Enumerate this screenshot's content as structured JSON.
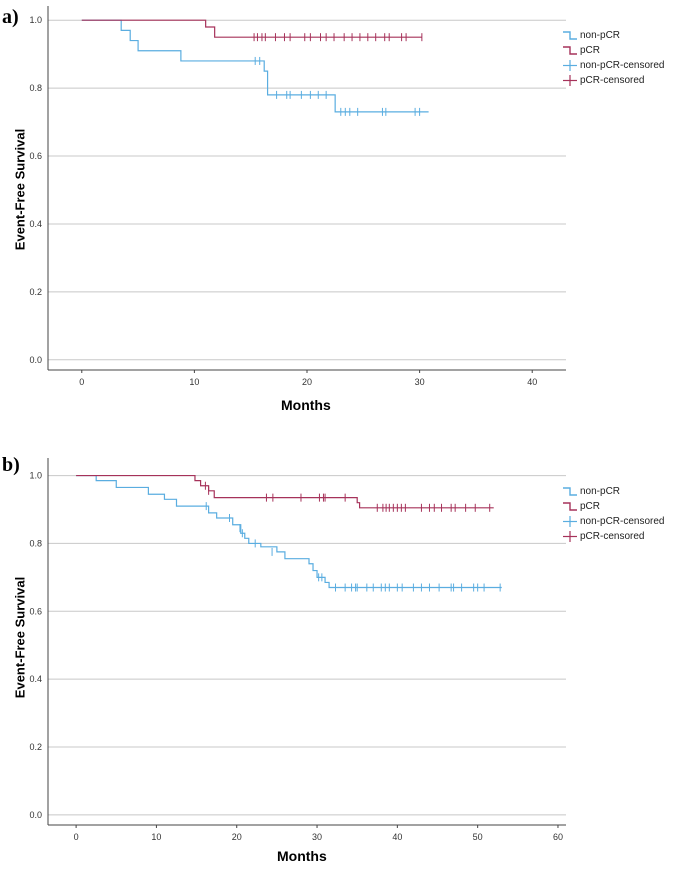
{
  "panels": [
    {
      "label": "a)"
    },
    {
      "label": "b)"
    }
  ],
  "chart_data": [
    {
      "type": "line",
      "ylabel": "Event-Free Survival",
      "xlabel": "Months",
      "xlim": [
        -3,
        43
      ],
      "ylim": [
        -0.03,
        1.03
      ],
      "xticks": [
        0,
        10,
        20,
        30,
        40
      ],
      "yticks": [
        0.0,
        0.2,
        0.4,
        0.6,
        0.8,
        1.0
      ],
      "grid": "horizontal",
      "legend_position": "right",
      "legend": [
        "non-pCR",
        "pCR",
        "non-pCR-censored",
        "pCR-censored"
      ],
      "series": [
        {
          "name": "non-pCR",
          "color": "#5aade0",
          "steps": [
            [
              0,
              1.0
            ],
            [
              3.5,
              0.97
            ],
            [
              4.3,
              0.94
            ],
            [
              5,
              0.91
            ],
            [
              8.8,
              0.88
            ],
            [
              16.2,
              0.85
            ],
            [
              16.5,
              0.78
            ],
            [
              22.5,
              0.73
            ],
            [
              30.8,
              0.73
            ]
          ],
          "censored": [
            [
              15.4,
              0.88
            ],
            [
              15.8,
              0.88
            ],
            [
              17.3,
              0.78
            ],
            [
              18.2,
              0.78
            ],
            [
              18.5,
              0.78
            ],
            [
              19.5,
              0.78
            ],
            [
              20.3,
              0.78
            ],
            [
              21,
              0.78
            ],
            [
              21.7,
              0.78
            ],
            [
              23,
              0.73
            ],
            [
              23.4,
              0.73
            ],
            [
              23.8,
              0.73
            ],
            [
              24.5,
              0.73
            ],
            [
              26.7,
              0.73
            ],
            [
              27,
              0.73
            ],
            [
              29.6,
              0.73
            ],
            [
              30,
              0.73
            ]
          ]
        },
        {
          "name": "pCR",
          "color": "#a6325a",
          "steps": [
            [
              0,
              1.0
            ],
            [
              11,
              0.98
            ],
            [
              11.8,
              0.95
            ],
            [
              30.2,
              0.95
            ]
          ],
          "censored": [
            [
              15.3,
              0.95
            ],
            [
              15.6,
              0.95
            ],
            [
              16,
              0.95
            ],
            [
              16.3,
              0.95
            ],
            [
              17.2,
              0.95
            ],
            [
              18,
              0.95
            ],
            [
              18.5,
              0.95
            ],
            [
              19.8,
              0.95
            ],
            [
              20.3,
              0.95
            ],
            [
              21.2,
              0.95
            ],
            [
              21.7,
              0.95
            ],
            [
              22.4,
              0.95
            ],
            [
              23.3,
              0.95
            ],
            [
              24,
              0.95
            ],
            [
              24.7,
              0.95
            ],
            [
              25.4,
              0.95
            ],
            [
              26.1,
              0.95
            ],
            [
              26.9,
              0.95
            ],
            [
              27.3,
              0.95
            ],
            [
              28.4,
              0.95
            ],
            [
              28.8,
              0.95
            ],
            [
              30.2,
              0.95
            ]
          ]
        }
      ]
    },
    {
      "type": "line",
      "ylabel": "Event-Free Survival",
      "xlabel": "Months",
      "xlim": [
        -3.5,
        61
      ],
      "ylim": [
        -0.03,
        1.04
      ],
      "xticks": [
        0,
        10,
        20,
        30,
        40,
        50,
        60
      ],
      "yticks": [
        0.0,
        0.2,
        0.4,
        0.6,
        0.8,
        1.0
      ],
      "grid": "horizontal",
      "legend_position": "right",
      "legend": [
        "non-pCR",
        "pCR",
        "non-pCR-censored",
        "pCR-censored"
      ],
      "series": [
        {
          "name": "non-pCR",
          "color": "#5aade0",
          "steps": [
            [
              0,
              1.0
            ],
            [
              2.5,
              0.985
            ],
            [
              5,
              0.965
            ],
            [
              9,
              0.945
            ],
            [
              11,
              0.93
            ],
            [
              12.5,
              0.91
            ],
            [
              16.5,
              0.89
            ],
            [
              17.5,
              0.875
            ],
            [
              19.5,
              0.855
            ],
            [
              20.5,
              0.83
            ],
            [
              21,
              0.815
            ],
            [
              21.5,
              0.8
            ],
            [
              23,
              0.79
            ],
            [
              25,
              0.775
            ],
            [
              26,
              0.755
            ],
            [
              29,
              0.74
            ],
            [
              29.5,
              0.72
            ],
            [
              30,
              0.7
            ],
            [
              31,
              0.685
            ],
            [
              31.5,
              0.67
            ],
            [
              53,
              0.67
            ]
          ],
          "censored": [
            [
              16.2,
              0.91
            ],
            [
              19.1,
              0.875
            ],
            [
              20.4,
              0.845
            ],
            [
              20.7,
              0.83
            ],
            [
              22.3,
              0.8
            ],
            [
              24.4,
              0.775
            ],
            [
              30.2,
              0.7
            ],
            [
              30.6,
              0.7
            ],
            [
              32.3,
              0.67
            ],
            [
              33.5,
              0.67
            ],
            [
              34.3,
              0.67
            ],
            [
              34.8,
              0.67
            ],
            [
              35,
              0.67
            ],
            [
              36.2,
              0.67
            ],
            [
              37,
              0.67
            ],
            [
              38,
              0.67
            ],
            [
              38.5,
              0.67
            ],
            [
              39,
              0.67
            ],
            [
              40,
              0.67
            ],
            [
              40.6,
              0.67
            ],
            [
              42,
              0.67
            ],
            [
              43,
              0.67
            ],
            [
              44,
              0.67
            ],
            [
              45.2,
              0.67
            ],
            [
              46.7,
              0.67
            ],
            [
              47,
              0.67
            ],
            [
              48,
              0.67
            ],
            [
              49.5,
              0.67
            ],
            [
              50,
              0.67
            ],
            [
              50.8,
              0.67
            ],
            [
              52.8,
              0.67
            ]
          ]
        },
        {
          "name": "pCR",
          "color": "#a6325a",
          "steps": [
            [
              0,
              1.0
            ],
            [
              14.8,
              0.985
            ],
            [
              15.5,
              0.97
            ],
            [
              16.5,
              0.955
            ],
            [
              17.2,
              0.935
            ],
            [
              35,
              0.92
            ],
            [
              35.3,
              0.905
            ],
            [
              52,
              0.905
            ]
          ],
          "censored": [
            [
              16.1,
              0.97
            ],
            [
              16.5,
              0.955
            ],
            [
              23.7,
              0.935
            ],
            [
              24.5,
              0.935
            ],
            [
              28,
              0.935
            ],
            [
              30.3,
              0.935
            ],
            [
              30.8,
              0.935
            ],
            [
              31,
              0.935
            ],
            [
              33.5,
              0.935
            ],
            [
              37.5,
              0.905
            ],
            [
              38.2,
              0.905
            ],
            [
              38.6,
              0.905
            ],
            [
              39,
              0.905
            ],
            [
              39.5,
              0.905
            ],
            [
              40,
              0.905
            ],
            [
              40.5,
              0.905
            ],
            [
              41,
              0.905
            ],
            [
              43,
              0.905
            ],
            [
              44,
              0.905
            ],
            [
              44.6,
              0.905
            ],
            [
              45.5,
              0.905
            ],
            [
              46.7,
              0.905
            ],
            [
              47.2,
              0.905
            ],
            [
              48.5,
              0.905
            ],
            [
              49.7,
              0.905
            ],
            [
              51.5,
              0.905
            ]
          ]
        }
      ]
    }
  ]
}
